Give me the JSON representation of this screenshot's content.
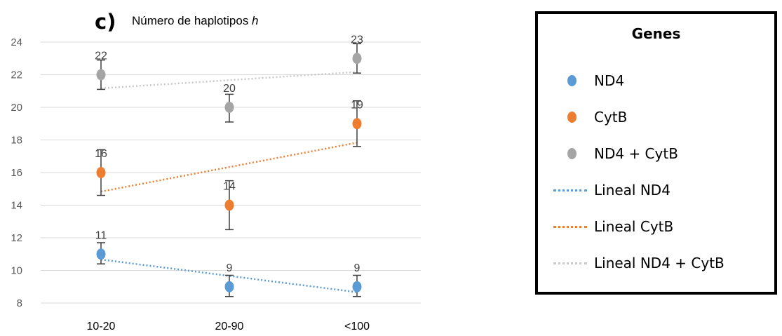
{
  "panel_label": "c)",
  "title": {
    "text": "Número de haplotipos ",
    "variable": "h"
  },
  "legend": {
    "title": "Genes",
    "items": [
      {
        "label": "ND4",
        "symbol": "marker",
        "color": "#5b9bd5"
      },
      {
        "label": "CytB",
        "symbol": "marker",
        "color": "#ed7d31"
      },
      {
        "label": "ND4 + CytB",
        "symbol": "marker",
        "color": "#a5a5a5"
      },
      {
        "label": "Lineal ND4",
        "symbol": "dotted-line",
        "color": "#5b9bd5"
      },
      {
        "label": "Lineal CytB",
        "symbol": "dotted-line",
        "color": "#ed7d31"
      },
      {
        "label": "Lineal ND4 + CytB",
        "symbol": "dotted-line",
        "color": "#c9c9c9"
      }
    ]
  },
  "chart_data": {
    "type": "scatter",
    "categories": [
      "10-20",
      "20-90",
      "<100"
    ],
    "ylim": [
      8,
      24
    ],
    "yticks": [
      8,
      10,
      12,
      14,
      16,
      18,
      20,
      22,
      24
    ],
    "grid": true,
    "legend_position": "right",
    "series": [
      {
        "name": "ND4",
        "color": "#5b9bd5",
        "values": [
          11,
          9,
          9
        ],
        "error": [
          [
            0.6,
            0.7
          ],
          [
            0.6,
            0.7
          ],
          [
            0.6,
            0.7
          ]
        ],
        "data_labels": [
          "11",
          "9",
          "9"
        ],
        "trendline": {
          "name": "Lineal ND4",
          "type": "linear",
          "color": "#5b9bd5"
        }
      },
      {
        "name": "CytB",
        "color": "#ed7d31",
        "values": [
          16,
          14,
          19
        ],
        "error": [
          [
            1.4,
            1.4
          ],
          [
            1.5,
            1.5
          ],
          [
            1.4,
            1.4
          ]
        ],
        "data_labels": [
          "16",
          "14",
          "19"
        ],
        "trendline": {
          "name": "Lineal CytB",
          "type": "linear",
          "color": "#ed7d31"
        }
      },
      {
        "name": "ND4 + CytB",
        "color": "#a5a5a5",
        "values": [
          22,
          20,
          23
        ],
        "error": [
          [
            0.9,
            0.9
          ],
          [
            0.9,
            0.8
          ],
          [
            0.9,
            0.9
          ]
        ],
        "data_labels": [
          "22",
          "20",
          "23"
        ],
        "trendline": {
          "name": "Lineal ND4 + CytB",
          "type": "linear",
          "color": "#c9c9c9"
        }
      }
    ]
  }
}
